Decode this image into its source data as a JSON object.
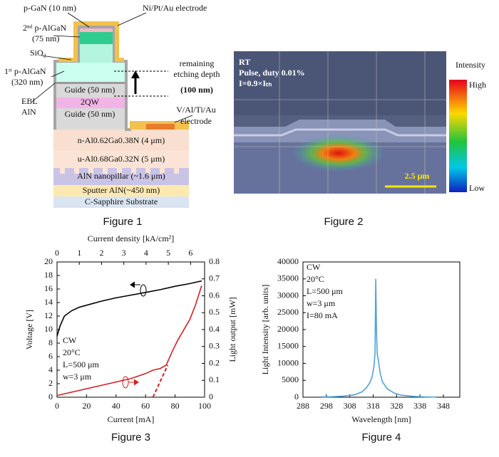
{
  "figure1": {
    "caption": "Figure 1",
    "labels": [
      "p-GaN (10 nm)",
      "Ni/Pt/Au electrode",
      "2ⁿᵈ p-AlGaN",
      "(75 nm)",
      "SiO₂",
      "1ˢᵗ p-AlGaN",
      "(320 nm)",
      "EBL",
      "AlN",
      "Guide (50 nm)",
      "2QW",
      "Guide (50 nm)",
      "remaining",
      "etching depth",
      "(100 nm)",
      "V/Al/Ti/Au",
      "electrode",
      "n-Al0.62Ga0.38N (4 μm)",
      "u-Al0.68Ga0.32N (5 μm)",
      "AlN nanopillar (~1.6 μm)",
      "Sputter AlN(~450 nm)",
      "C-Sapphire Substrate"
    ]
  },
  "figure2": {
    "caption": "Figure 2",
    "overlay": [
      "RT",
      "Pulse, duty 0.01%",
      "I=0.9×Iₜₕ"
    ],
    "scale_bar": "2.5 μm",
    "colorbar_title": "Intensity",
    "colorbar_high": "High",
    "colorbar_low": "Low"
  },
  "chart_data": [
    {
      "type": "line",
      "caption": "Figure 3",
      "x_label": "Current [mA]",
      "x2_label": "Current density [kA/cm²]",
      "y_label": "Voltage [V]",
      "y2_label": "Light output [mW]",
      "xlim": [
        0,
        100
      ],
      "xticks": [
        0,
        20,
        40,
        60,
        80,
        100
      ],
      "x2lim": [
        0,
        6.63
      ],
      "x2ticks": [
        0,
        1,
        2,
        3,
        4,
        5,
        6
      ],
      "ylim": [
        0,
        20
      ],
      "yticks": [
        0,
        2,
        4,
        6,
        8,
        10,
        12,
        14,
        16,
        18,
        20
      ],
      "y2lim": [
        0,
        0.8
      ],
      "y2ticks": [
        0,
        0.1,
        0.2,
        0.3,
        0.4,
        0.5,
        0.6,
        0.7,
        0.8
      ],
      "annotations": [
        "CW",
        "20°C",
        "L=500 μm",
        "w=3 μm"
      ],
      "series": [
        {
          "color": "#000000",
          "x": [
            0,
            2,
            5,
            10,
            15,
            20,
            30,
            40,
            50,
            60,
            70,
            80,
            90,
            98
          ],
          "values": [
            9,
            10.5,
            12,
            12.8,
            13.3,
            13.6,
            14.2,
            14.7,
            15.1,
            15.5,
            15.9,
            16.4,
            16.8,
            17.2
          ]
        },
        {
          "color": "#d42020",
          "axis": "y2",
          "x": [
            0,
            10,
            20,
            30,
            40,
            50,
            60,
            65,
            70,
            74,
            78,
            82,
            86,
            90,
            94,
            98
          ],
          "values": [
            0.01,
            0.03,
            0.05,
            0.07,
            0.09,
            0.11,
            0.14,
            0.16,
            0.17,
            0.19,
            0.27,
            0.34,
            0.4,
            0.46,
            0.55,
            0.66
          ]
        },
        {
          "color": "#d42020",
          "axis": "y2",
          "dash": true,
          "x": [
            65,
            75
          ],
          "values": [
            0,
            0.19
          ]
        }
      ]
    },
    {
      "type": "line",
      "caption": "Figure 4",
      "x_label": "Wavelength [nm]",
      "y_label": "Light Intensity [arb. units]",
      "xlim": [
        288,
        355
      ],
      "xticks": [
        288,
        298,
        308,
        318,
        328,
        338,
        348
      ],
      "ylim": [
        0,
        40000
      ],
      "yticks": [
        0,
        5000,
        10000,
        15000,
        20000,
        25000,
        30000,
        35000,
        40000
      ],
      "annotations": [
        "CW",
        "20°C",
        "L=500 μm",
        "w=3 μm",
        "I=80 mA"
      ],
      "series": [
        {
          "color": "#4fa3d8",
          "x": [
            296,
            300,
            305,
            310,
            313,
            315,
            316.5,
            317.5,
            318.3,
            318.8,
            319.1,
            319.4,
            319.7,
            320.2,
            321,
            322,
            324,
            327,
            330,
            335,
            340,
            345
          ],
          "values": [
            100,
            150,
            300,
            700,
            1500,
            2700,
            4200,
            6000,
            9000,
            13000,
            35000,
            20000,
            13000,
            11000,
            7000,
            4500,
            2500,
            1200,
            600,
            250,
            100,
            50
          ]
        }
      ]
    }
  ]
}
